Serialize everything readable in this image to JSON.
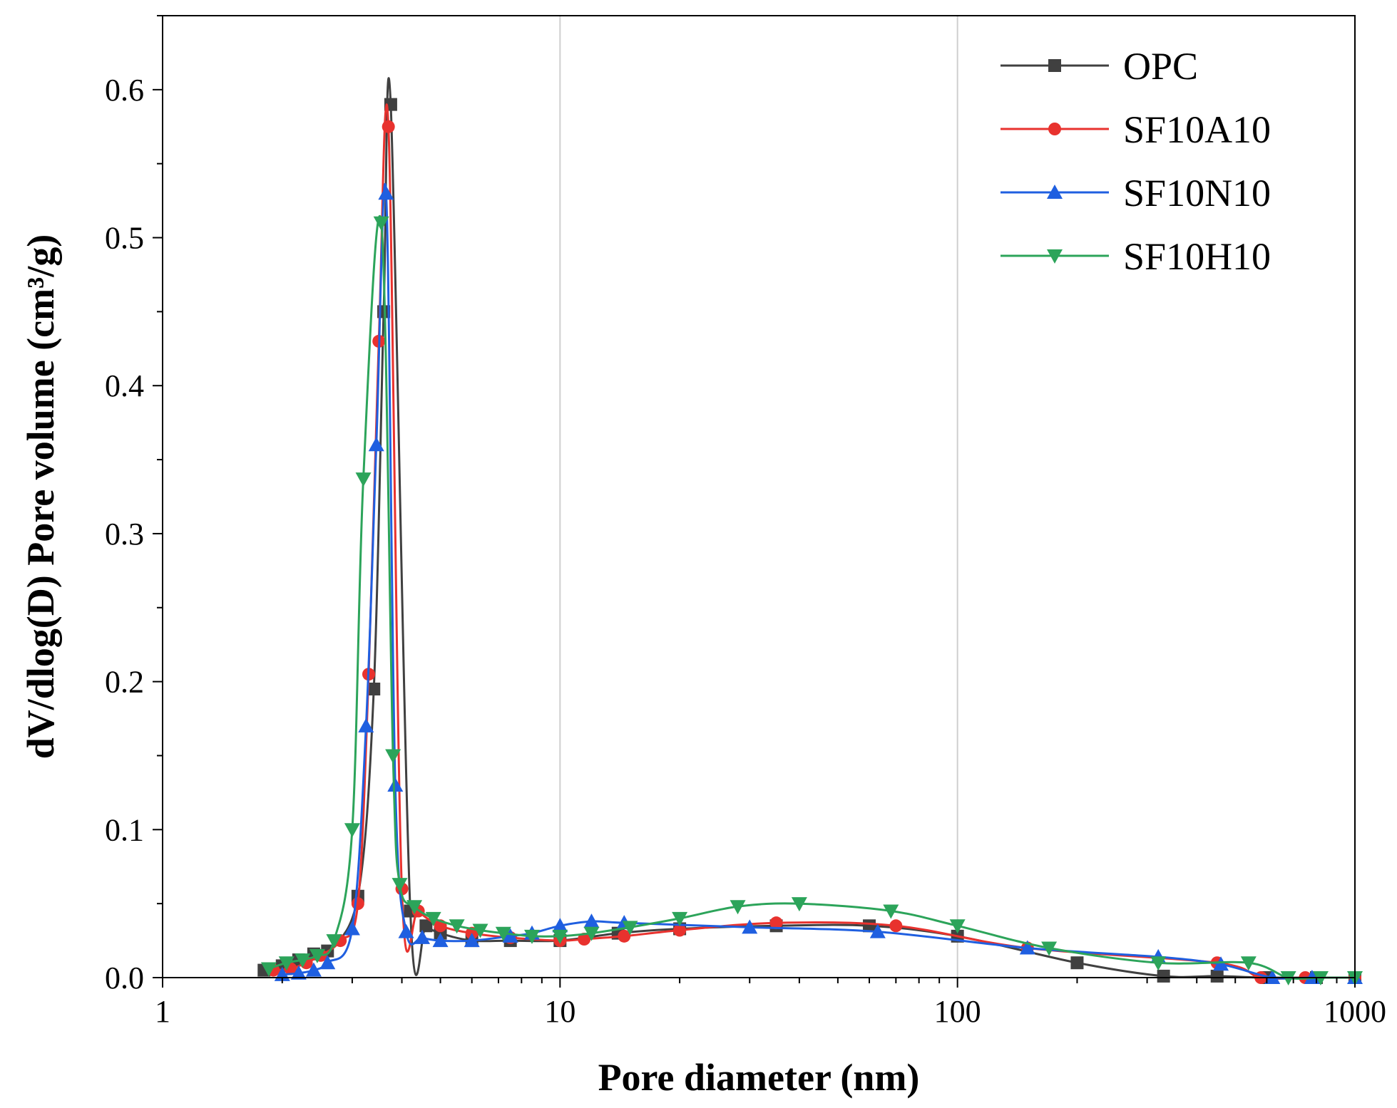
{
  "chart_data": {
    "type": "line",
    "xscale": "log",
    "xlabel": "Pore diameter (nm)",
    "ylabel": "dV/dlog(D) Pore volume (cm³/g)",
    "xlim": [
      1,
      1000
    ],
    "ylim": [
      0,
      0.65
    ],
    "xticks": [
      1,
      10,
      100,
      1000
    ],
    "xtick_labels": [
      "1",
      "10",
      "100",
      "1000"
    ],
    "yticks": [
      0,
      0.1,
      0.2,
      0.3,
      0.4,
      0.5,
      0.6
    ],
    "ytick_labels": [
      "0.0",
      "0.1",
      "0.2",
      "0.3",
      "0.4",
      "0.5",
      "0.6"
    ],
    "grid": "vertical major",
    "legend_position": "top-right",
    "series": [
      {
        "name": "OPC",
        "color": "#404040",
        "marker": "square",
        "x": [
          1.8,
          2.0,
          2.2,
          2.4,
          2.6,
          3.1,
          3.4,
          3.6,
          3.75,
          4.2,
          4.6,
          5.0,
          6.0,
          7.5,
          10.0,
          14.0,
          20.0,
          35.0,
          60.0,
          100.0,
          200.0,
          330.0,
          450.0,
          600.0,
          800.0,
          1000.0
        ],
        "y": [
          0.005,
          0.008,
          0.012,
          0.016,
          0.018,
          0.055,
          0.195,
          0.45,
          0.59,
          0.045,
          0.035,
          0.03,
          0.025,
          0.025,
          0.025,
          0.03,
          0.033,
          0.035,
          0.035,
          0.028,
          0.01,
          0.001,
          0.001,
          0.0,
          0.0,
          0.0
        ]
      },
      {
        "name": "SF10A10",
        "color": "#e8322e",
        "marker": "circle",
        "x": [
          1.9,
          2.1,
          2.3,
          2.5,
          2.8,
          3.1,
          3.3,
          3.5,
          3.7,
          4.0,
          4.4,
          5.0,
          6.0,
          7.5,
          10.0,
          11.5,
          14.5,
          20.0,
          35.0,
          70.0,
          150.0,
          450.0,
          580.0,
          750.0,
          1000.0
        ],
        "y": [
          0.005,
          0.006,
          0.01,
          0.015,
          0.025,
          0.05,
          0.205,
          0.43,
          0.575,
          0.06,
          0.045,
          0.035,
          0.03,
          0.027,
          0.025,
          0.026,
          0.028,
          0.032,
          0.037,
          0.035,
          0.02,
          0.01,
          0.0,
          0.0,
          0.0
        ]
      },
      {
        "name": "SF10N10",
        "color": "#1f5fe0",
        "marker": "triangle-up",
        "x": [
          2.0,
          2.2,
          2.4,
          2.6,
          3.0,
          3.25,
          3.45,
          3.65,
          3.85,
          4.1,
          4.5,
          5.0,
          6.0,
          7.5,
          8.5,
          10.0,
          12.0,
          14.5,
          30.0,
          63.0,
          150.0,
          320.0,
          460.0,
          620.0,
          780.0,
          1000.0
        ],
        "y": [
          0.002,
          0.003,
          0.005,
          0.01,
          0.033,
          0.17,
          0.36,
          0.53,
          0.13,
          0.031,
          0.027,
          0.025,
          0.025,
          0.028,
          0.03,
          0.035,
          0.038,
          0.037,
          0.034,
          0.031,
          0.02,
          0.014,
          0.009,
          0.0,
          0.0,
          0.0
        ]
      },
      {
        "name": "SF10H10",
        "color": "#2ca45a",
        "marker": "triangle-down",
        "x": [
          1.85,
          2.05,
          2.25,
          2.45,
          2.7,
          3.0,
          3.2,
          3.55,
          3.8,
          3.95,
          4.3,
          4.8,
          5.5,
          6.3,
          7.2,
          8.5,
          10.0,
          12.0,
          15.0,
          20.0,
          28.0,
          40.0,
          68.0,
          100.0,
          170.0,
          320.0,
          540.0,
          680.0,
          820.0,
          1000.0
        ],
        "y": [
          0.006,
          0.01,
          0.012,
          0.015,
          0.025,
          0.1,
          0.337,
          0.51,
          0.15,
          0.063,
          0.048,
          0.04,
          0.035,
          0.032,
          0.03,
          0.028,
          0.028,
          0.03,
          0.034,
          0.04,
          0.048,
          0.05,
          0.045,
          0.035,
          0.02,
          0.01,
          0.01,
          0.0,
          0.0,
          0.0
        ]
      }
    ]
  }
}
